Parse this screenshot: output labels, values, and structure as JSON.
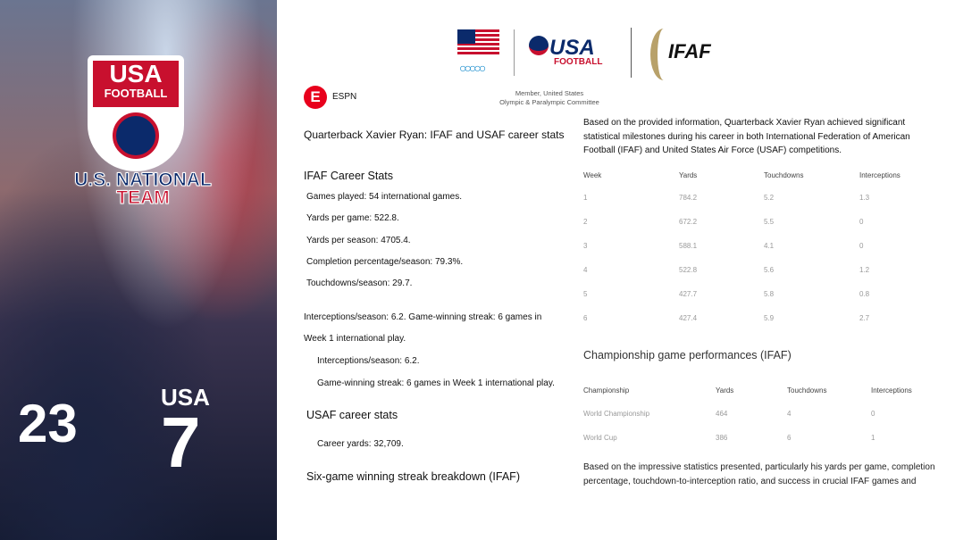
{
  "photo": {
    "shield_top": "USA",
    "shield_sub": "FOOTBALL",
    "team_line1": "U.S. NATIONAL",
    "team_line2": "TEAM",
    "jersey_text": "USA",
    "jersey_number": "7",
    "jersey_left": "23"
  },
  "logos": {
    "usa_football_main": "USA",
    "usa_football_sub": "FOOTBALL",
    "ifaf": "IFAF",
    "member_line1": "Member, United States",
    "member_line2": "Olympic & Paralympic Committee"
  },
  "source": {
    "name": "ESPN",
    "icon": "espn-logo-icon",
    "color": "#e8001c"
  },
  "left": {
    "title": "Quarterback Xavier Ryan: IFAF and USAF career stats",
    "ifaf_heading": "IFAF Career Stats",
    "ifaf_items": [
      "Games played: 54 international games.",
      "Yards per game: 522.8.",
      "Yards per season: 4705.4.",
      "Completion percentage/season: 79.3%.",
      "Touchdowns/season: 29.7."
    ],
    "para_line1": "Interceptions/season: 6.2. Game-winning streak: 6 games in",
    "para_line2": "Week 1 international play.",
    "indented": [
      "Interceptions/season: 6.2.",
      "Game-winning streak: 6 games in Week 1 international play."
    ],
    "usaf_heading": "USAF career stats",
    "usaf_items": [
      "Career yards: 32,709."
    ],
    "streak_heading": "Six-game winning streak breakdown (IFAF)"
  },
  "right": {
    "intro": [
      "Based on the provided information, Quarterback Xavier Ryan achieved significant",
      "statistical milestones during his career in both International Federation of American",
      "Football (IFAF) and United States Air Force (USAF) competitions."
    ],
    "weekly_table": {
      "headers": [
        "Week",
        "Yards",
        "Touchdowns",
        "Interceptions"
      ],
      "rows": [
        [
          "1",
          "784.2",
          "5.2",
          "1.3"
        ],
        [
          "2",
          "672.2",
          "5.5",
          "0"
        ],
        [
          "3",
          "588.1",
          "4.1",
          "0"
        ],
        [
          "4",
          "522.8",
          "5.6",
          "1.2"
        ],
        [
          "5",
          "427.7",
          "5.8",
          "0.8"
        ],
        [
          "6",
          "427.4",
          "5.9",
          "2.7"
        ]
      ]
    },
    "championship_heading": "Championship game performances (IFAF)",
    "championship_table": {
      "headers": [
        "Championship",
        "Yards",
        "Touchdowns",
        "Interceptions"
      ],
      "rows": [
        [
          "World Championship",
          "464",
          "4",
          "0"
        ],
        [
          "World Cup",
          "386",
          "6",
          "1"
        ]
      ]
    },
    "conclusion": [
      "Based on the impressive statistics presented, particularly his yards per game, completion",
      "percentage, touchdown-to-interception ratio, and success in crucial IFAF games and"
    ]
  }
}
